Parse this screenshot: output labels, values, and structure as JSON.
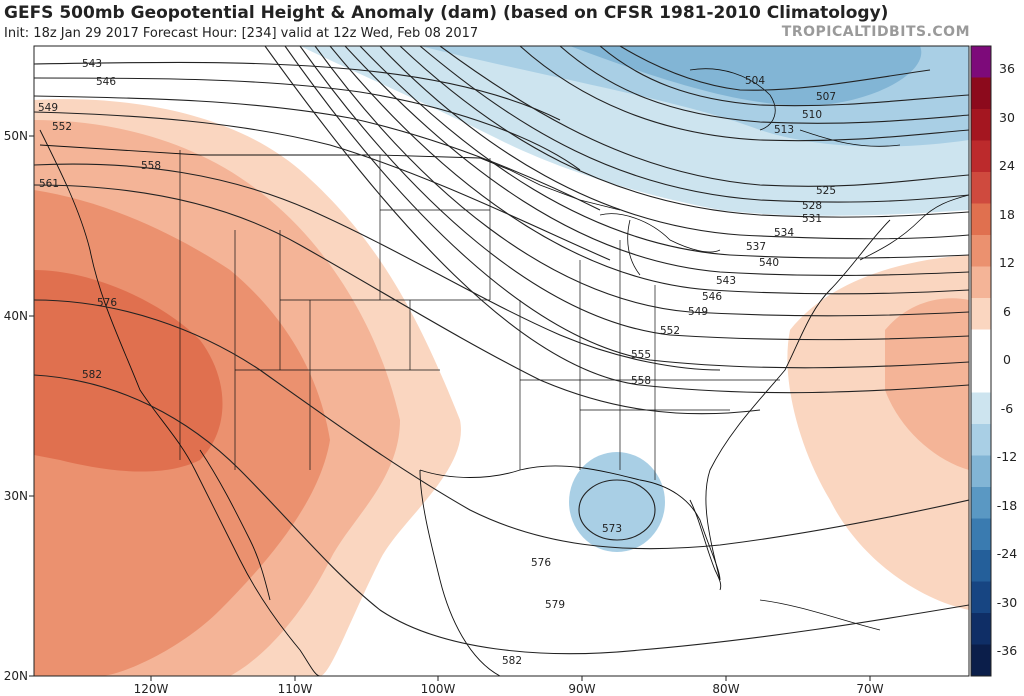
{
  "header": {
    "title": "GEFS 500mb Geopotential Height & Anomaly (dam) (based on CFSR 1981-2010 Climatology)",
    "init_text": "Init: 18z Jan 29 2017   Forecast Hour: [234]   valid at 12z Wed, Feb 08 2017",
    "brand": "TROPICALTIDBITS.COM"
  },
  "axes": {
    "lat_labels": [
      "50N",
      "40N",
      "30N",
      "20N"
    ],
    "lon_labels": [
      "120W",
      "110W",
      "100W",
      "90W",
      "80W",
      "70W"
    ]
  },
  "contour_labels": [
    "543",
    "546",
    "549",
    "552",
    "558",
    "561",
    "576",
    "582",
    "504",
    "507",
    "510",
    "513",
    "525",
    "528",
    "531",
    "534",
    "537",
    "540",
    "543",
    "546",
    "549",
    "552",
    "555",
    "558",
    "573",
    "576",
    "579",
    "582"
  ],
  "colorbar": {
    "labels": [
      "36",
      "30",
      "24",
      "18",
      "12",
      "6",
      "0",
      "-6",
      "-12",
      "-18",
      "-24",
      "-30",
      "-36"
    ],
    "colors": [
      "#7d0a7a",
      "#8c0a1c",
      "#a41620",
      "#bc2a2c",
      "#cf4a3e",
      "#e0704f",
      "#eb916f",
      "#f4b497",
      "#fad6c0",
      "#ffffff",
      "#ffffff",
      "#cde4ef",
      "#a9cfe5",
      "#82b5d5",
      "#5a98c3",
      "#3a7bb0",
      "#245f9a",
      "#174582",
      "#0f2e66",
      "#0b1e4a"
    ]
  }
}
